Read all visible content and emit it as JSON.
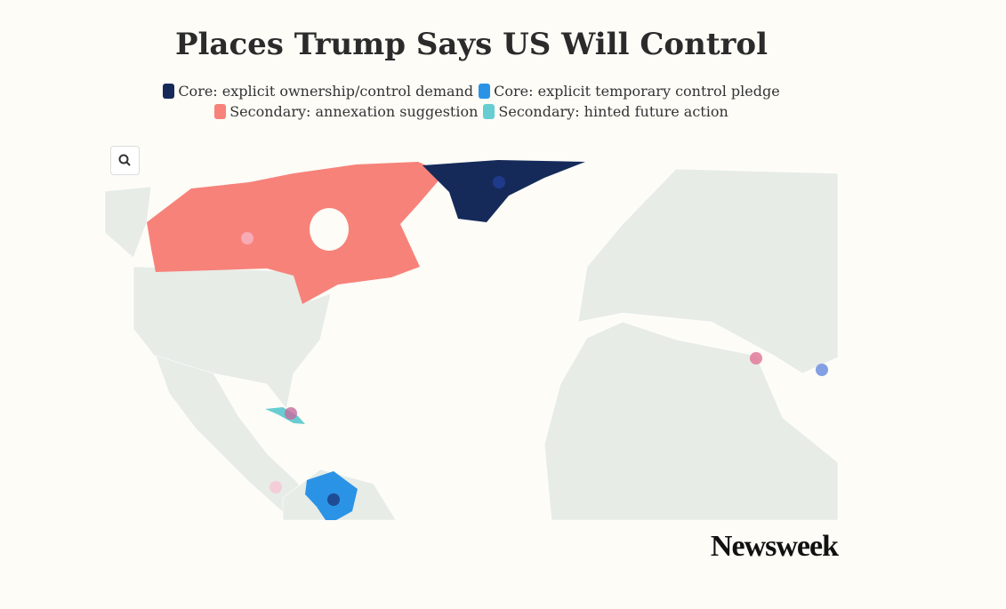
{
  "title": "Places Trump Says US Will Control",
  "legend": [
    {
      "name": "Core: explicit ownership/control demand",
      "color": "#162a5a"
    },
    {
      "name": "Core: explicit temporary control pledge",
      "color": "#2b93e6"
    },
    {
      "name": "Secondary: annexation suggestion",
      "color": "#f7827a"
    },
    {
      "name": "Secondary: hinted future action",
      "color": "#68cdd0"
    }
  ],
  "brand": "Newsweek"
}
